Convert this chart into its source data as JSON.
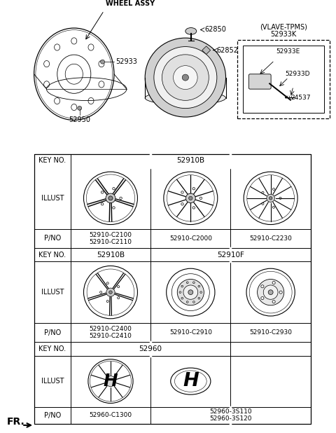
{
  "bg_color": "#ffffff",
  "line_color": "#000000",
  "parts": {
    "wheel_assy_label": "WHEEL ASSY",
    "part_52933": "52933",
    "part_52950": "52950",
    "part_62850": "62850",
    "part_62852": "62852",
    "vlave_box_label": "(VLAVE-TPMS)",
    "part_52933K": "52933K",
    "part_52933E": "52933E",
    "part_52933D": "52933D",
    "part_24537": "24537"
  },
  "table": {
    "key1": "52910B",
    "pno1_c1": "52910-C2100\n52910-C2110",
    "pno1_c2": "52910-C2000",
    "pno1_c3": "52910-C2230",
    "key2_c1": "52910B",
    "key2_c23": "52910F",
    "pno2_c1": "52910-C2400\n52910-C2410",
    "pno2_c2": "52910-C2910",
    "pno2_c3": "52910-C2930",
    "key3": "52960",
    "pno3_c1": "52960-C1300",
    "pno3_c23": "52960-3S110\n52960-3S120"
  },
  "fr_label": "FR."
}
